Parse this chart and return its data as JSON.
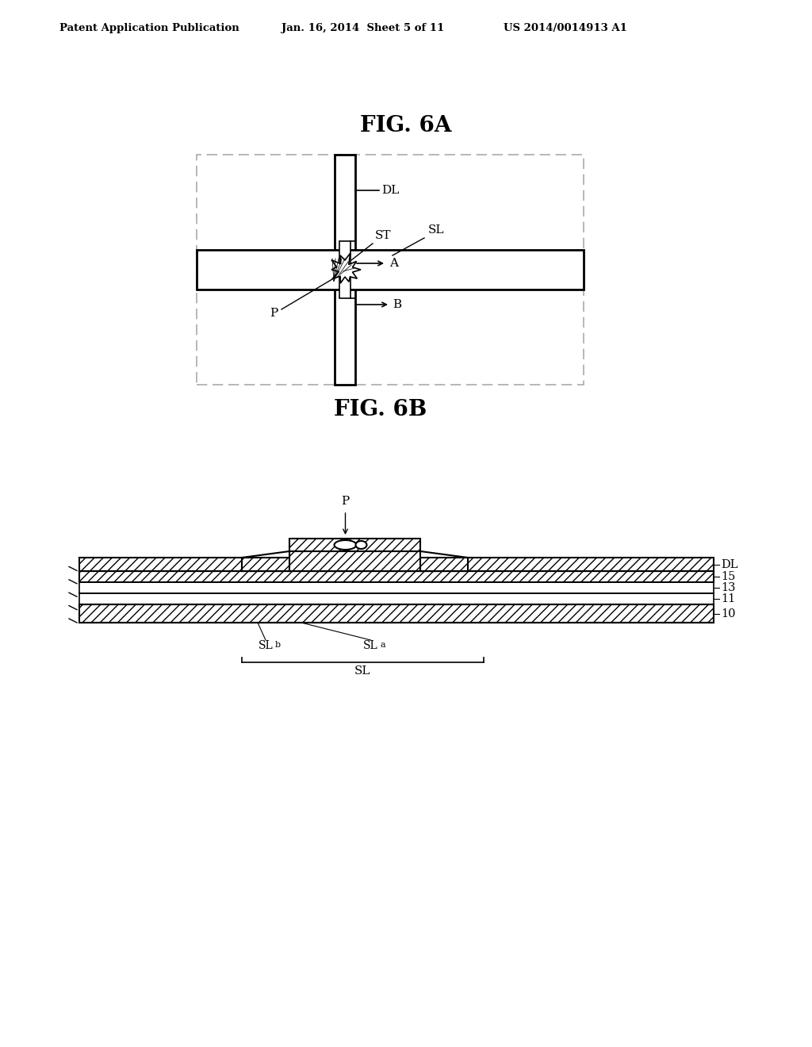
{
  "header_left": "Patent Application Publication",
  "header_mid": "Jan. 16, 2014  Sheet 5 of 11",
  "header_right": "US 2014/0014913 A1",
  "fig6a_title": "FIG. 6A",
  "fig6b_title": "FIG. 6B",
  "bg_color": "#ffffff",
  "line_color": "#000000"
}
